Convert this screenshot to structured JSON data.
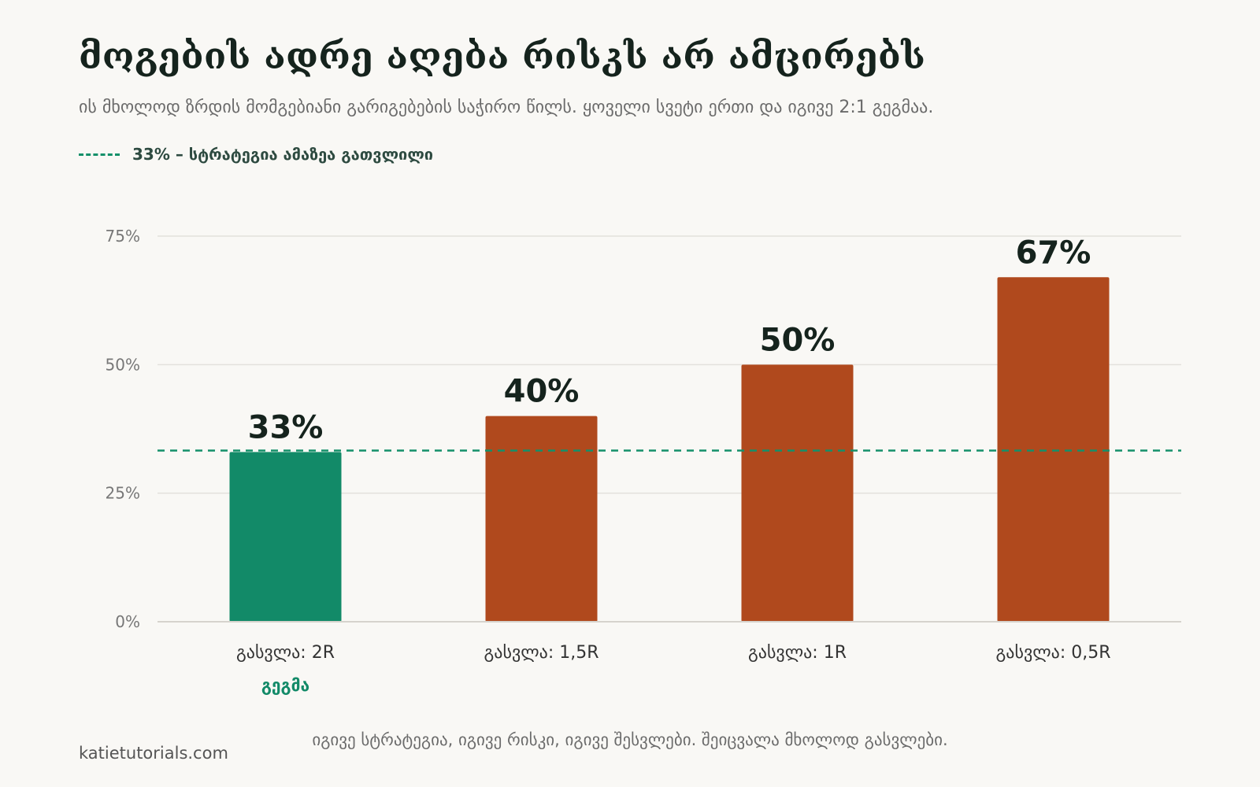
{
  "header": {
    "title": "მოგების ადრე აღება რისკს არ ამცირებს",
    "subtitle": "ის მხოლოდ ზრდის მომგებიანი გარიგებების საჭირო წილს. ყოველი სვეტი ერთი და იგივე 2:1 გეგმაა."
  },
  "legend": {
    "label": "33% – სტრატეგია ამაზეა გათვლილი"
  },
  "footer": {
    "note": "იგივე სტრატეგია, იგივე რისკი, იგივე შესვლები. შეიცვალა მხოლოდ გასვლები.",
    "site": "katietutorials.com"
  },
  "colors": {
    "plan": "#128a68",
    "other": "#b0491d",
    "reference": "#14906a",
    "grid": "#e3e1dc",
    "axis_text": "#777777",
    "value_text": "#15231d"
  },
  "chart_data": {
    "type": "bar",
    "categories": [
      "გასვლა: 2R",
      "გასვლა: 1,5R",
      "გასვლა: 1R",
      "გასვლა: 0,5R"
    ],
    "values": [
      33,
      40,
      50,
      67
    ],
    "value_labels": [
      "33%",
      "40%",
      "50%",
      "67%"
    ],
    "highlight_index": 0,
    "highlight_sublabel": "გეგმა",
    "reference_line": 33.3,
    "ylim": [
      0,
      75
    ],
    "yticks": [
      0,
      25,
      50,
      75
    ],
    "ytick_labels": [
      "0%",
      "25%",
      "50%",
      "75%"
    ],
    "grid": true
  }
}
